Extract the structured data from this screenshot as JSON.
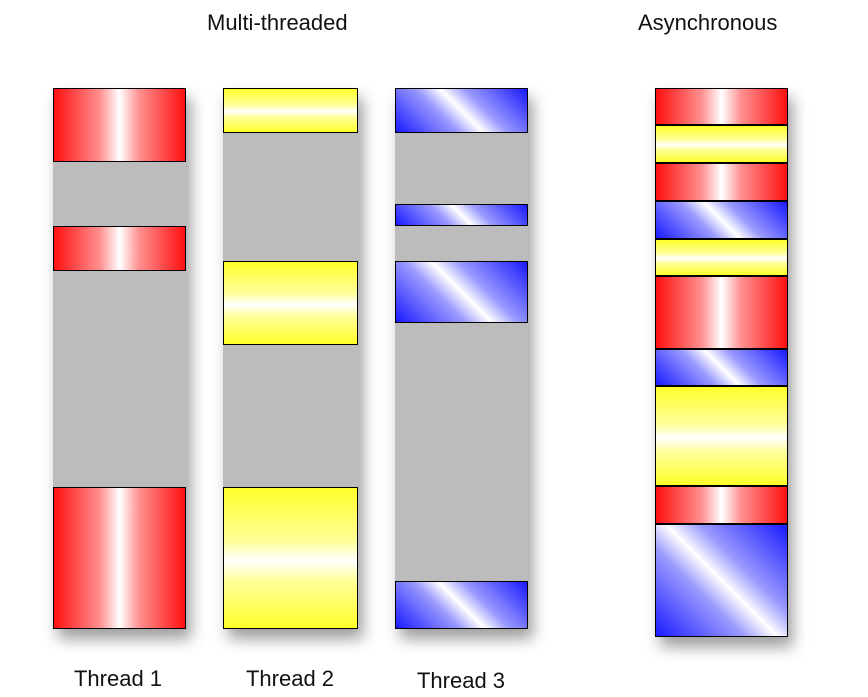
{
  "headings": {
    "multi_threaded": "Multi-threaded",
    "asynchronous": "Asynchronous"
  },
  "columns": [
    {
      "id": "thread-1",
      "label": "Thread 1",
      "segments": [
        {
          "color": "red",
          "start": 0.0,
          "end": 0.136
        },
        {
          "color": "red",
          "start": 0.255,
          "end": 0.338
        },
        {
          "color": "red",
          "start": 0.737,
          "end": 1.0
        }
      ]
    },
    {
      "id": "thread-2",
      "label": "Thread 2",
      "segments": [
        {
          "color": "yellow",
          "start": 0.0,
          "end": 0.083
        },
        {
          "color": "yellow",
          "start": 0.32,
          "end": 0.475
        },
        {
          "color": "yellow",
          "start": 0.737,
          "end": 1.0
        }
      ]
    },
    {
      "id": "thread-3",
      "label": "Thread 3",
      "segments": [
        {
          "color": "blue",
          "start": 0.0,
          "end": 0.083
        },
        {
          "color": "blue",
          "start": 0.215,
          "end": 0.255
        },
        {
          "color": "blue",
          "start": 0.32,
          "end": 0.435
        },
        {
          "color": "blue",
          "start": 0.912,
          "end": 1.0
        }
      ]
    },
    {
      "id": "asynchronous",
      "label": "",
      "segments": [
        {
          "color": "red",
          "start": 0.0,
          "end": 0.068
        },
        {
          "color": "yellow",
          "start": 0.068,
          "end": 0.136
        },
        {
          "color": "red",
          "start": 0.136,
          "end": 0.205
        },
        {
          "color": "blue",
          "start": 0.205,
          "end": 0.275
        },
        {
          "color": "yellow",
          "start": 0.275,
          "end": 0.342
        },
        {
          "color": "red",
          "start": 0.342,
          "end": 0.476
        },
        {
          "color": "blue",
          "start": 0.476,
          "end": 0.543
        },
        {
          "color": "yellow",
          "start": 0.543,
          "end": 0.725
        },
        {
          "color": "red",
          "start": 0.725,
          "end": 0.795
        },
        {
          "color": "blue",
          "start": 0.795,
          "end": 1.0
        }
      ]
    }
  ]
}
